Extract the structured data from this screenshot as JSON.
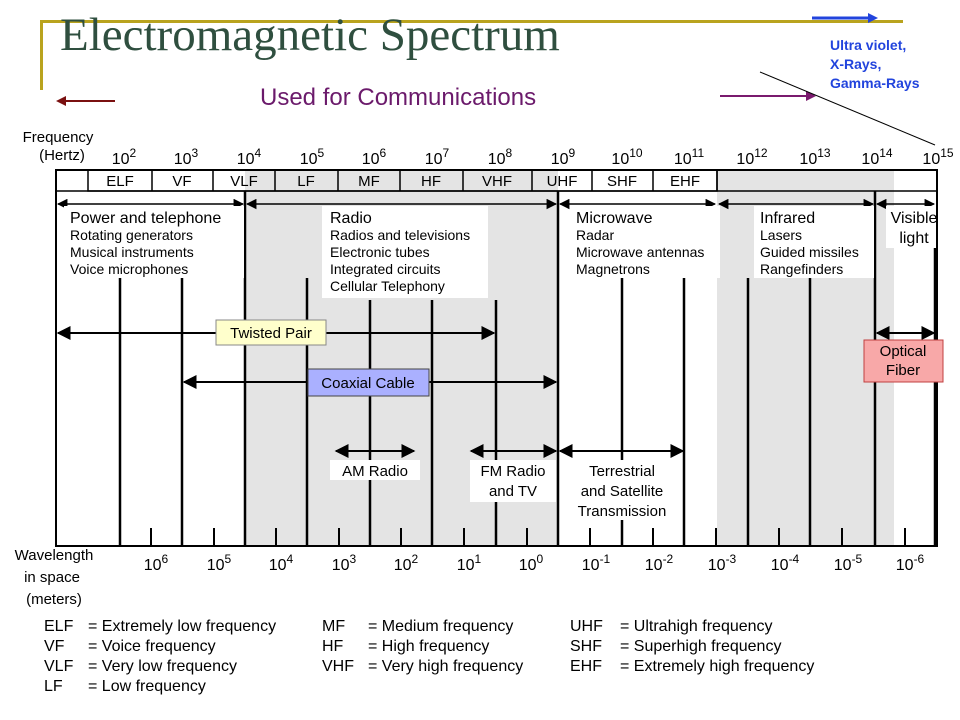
{
  "title": "Electromagnetic Spectrum",
  "subtitle": "Used for Communications",
  "uv_note": [
    "Ultra violet,",
    "X-Rays,",
    "Gamma-Rays"
  ],
  "colors": {
    "title": "#2f4f3f",
    "accent_olive": "#b9a31e",
    "subtitle": "#6b1a6b",
    "arrow_blue": "#2244dd",
    "arrow_purple": "#7a1a6e",
    "arrow_maroon": "#7a1010",
    "shade": "#e4e4e4",
    "twisted_pair": "#ffffcc",
    "coaxial": "#aab0ff",
    "optical": "#f8a8a8"
  },
  "frequency_label": [
    "Frequency",
    "(Hertz)"
  ],
  "frequency_ticks": [
    {
      "b": "10",
      "e": "2"
    },
    {
      "b": "10",
      "e": "3"
    },
    {
      "b": "10",
      "e": "4"
    },
    {
      "b": "10",
      "e": "5"
    },
    {
      "b": "10",
      "e": "6"
    },
    {
      "b": "10",
      "e": "7"
    },
    {
      "b": "10",
      "e": "8"
    },
    {
      "b": "10",
      "e": "9"
    },
    {
      "b": "10",
      "e": "10"
    },
    {
      "b": "10",
      "e": "11"
    },
    {
      "b": "10",
      "e": "12"
    },
    {
      "b": "10",
      "e": "13"
    },
    {
      "b": "10",
      "e": "14"
    },
    {
      "b": "10",
      "e": "15"
    }
  ],
  "bands": [
    "ELF",
    "VF",
    "VLF",
    "LF",
    "MF",
    "HF",
    "VHF",
    "UHF",
    "SHF",
    "EHF"
  ],
  "regions": [
    {
      "name": "power",
      "lines": [
        "Power and telephone",
        "Rotating generators",
        "Musical instruments",
        "Voice microphones"
      ]
    },
    {
      "name": "radio",
      "lines": [
        "Radio",
        "Radios and televisions",
        "Electronic tubes",
        "Integrated circuits",
        "Cellular Telephony"
      ]
    },
    {
      "name": "microwave",
      "lines": [
        "Microwave",
        "Radar",
        "Microwave antennas",
        "Magnetrons"
      ]
    },
    {
      "name": "infrared",
      "lines": [
        "Infrared",
        "Lasers",
        "Guided missiles",
        "Rangefinders"
      ]
    },
    {
      "name": "visible",
      "lines": [
        "Visible",
        "light"
      ]
    }
  ],
  "media": {
    "twisted_pair": "Twisted Pair",
    "coaxial": "Coaxial Cable",
    "optical": [
      "Optical",
      "Fiber"
    ]
  },
  "services": {
    "am": "AM Radio",
    "fm": [
      "FM Radio",
      "and TV"
    ],
    "terrestrial": [
      "Terrestrial",
      "and Satellite",
      "Transmission"
    ]
  },
  "wavelength_label": [
    "Wavelength",
    "in space",
    "(meters)"
  ],
  "wavelength_ticks": [
    {
      "b": "10",
      "e": "6"
    },
    {
      "b": "10",
      "e": "5"
    },
    {
      "b": "10",
      "e": "4"
    },
    {
      "b": "10",
      "e": "3"
    },
    {
      "b": "10",
      "e": "2"
    },
    {
      "b": "10",
      "e": "1"
    },
    {
      "b": "10",
      "e": "0"
    },
    {
      "b": "10",
      "e": "-1"
    },
    {
      "b": "10",
      "e": "-2"
    },
    {
      "b": "10",
      "e": "-3"
    },
    {
      "b": "10",
      "e": "-4"
    },
    {
      "b": "10",
      "e": "-5"
    },
    {
      "b": "10",
      "e": "-6"
    }
  ],
  "legend": [
    [
      "ELF",
      "= Extremely low frequency"
    ],
    [
      "VF",
      "= Voice frequency"
    ],
    [
      "VLF",
      "= Very low frequency"
    ],
    [
      "LF",
      "= Low frequency"
    ],
    [
      "MF",
      "= Medium frequency"
    ],
    [
      "HF",
      "= High frequency"
    ],
    [
      "VHF",
      "= Very high frequency"
    ],
    [
      "UHF",
      "= Ultrahigh frequency"
    ],
    [
      "SHF",
      "= Superhigh frequency"
    ],
    [
      "EHF",
      "= Extremely high frequency"
    ]
  ]
}
